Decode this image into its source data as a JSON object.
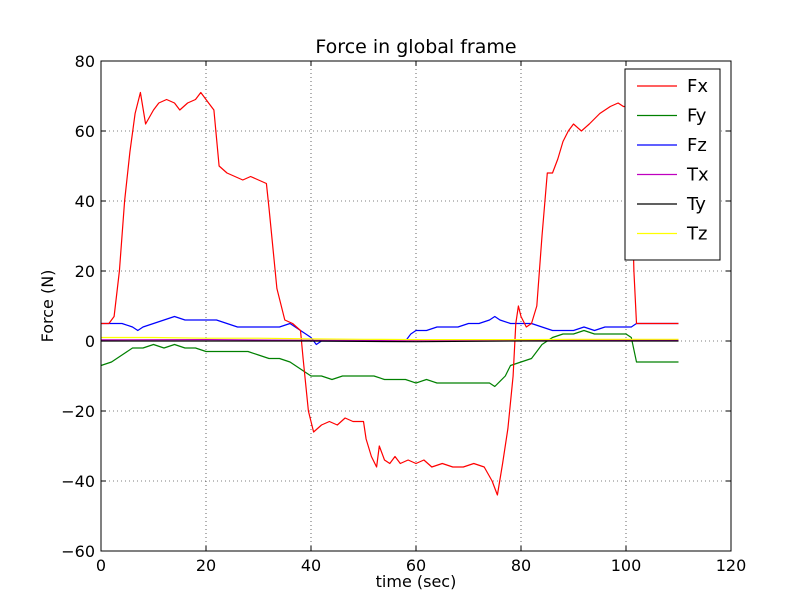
{
  "chart_data": {
    "type": "line",
    "title": "Force in global frame",
    "xlabel": "time (sec)",
    "ylabel": "Force (N)",
    "xlim": [
      0,
      120
    ],
    "ylim": [
      -60,
      80
    ],
    "xticks": [
      0,
      20,
      40,
      60,
      80,
      100,
      120
    ],
    "yticks": [
      -60,
      -40,
      -20,
      0,
      20,
      40,
      60,
      80
    ],
    "xtick_labels": [
      "0",
      "20",
      "40",
      "60",
      "80",
      "100",
      "120"
    ],
    "ytick_labels": [
      "−60",
      "−40",
      "−20",
      "0",
      "20",
      "40",
      "60",
      "80"
    ],
    "grid": true,
    "legend_position": "top-right",
    "series": [
      {
        "name": "Fx",
        "color": "#ff0000",
        "points": [
          [
            0,
            5
          ],
          [
            1.5,
            5
          ],
          [
            2.5,
            7
          ],
          [
            3.5,
            20
          ],
          [
            4.5,
            40
          ],
          [
            5.5,
            54
          ],
          [
            6.5,
            65
          ],
          [
            7.5,
            71
          ],
          [
            8.5,
            62
          ],
          [
            10,
            66
          ],
          [
            11,
            68
          ],
          [
            12.5,
            69
          ],
          [
            14,
            68
          ],
          [
            15,
            66
          ],
          [
            16.5,
            68
          ],
          [
            18,
            69
          ],
          [
            19,
            71
          ],
          [
            20.5,
            68
          ],
          [
            21.5,
            66
          ],
          [
            22.5,
            50
          ],
          [
            24,
            48
          ],
          [
            25.5,
            47
          ],
          [
            27,
            46
          ],
          [
            28.5,
            47
          ],
          [
            30,
            46
          ],
          [
            31.5,
            45
          ],
          [
            32,
            38
          ],
          [
            33.5,
            15
          ],
          [
            35,
            6
          ],
          [
            36.5,
            5
          ],
          [
            38,
            3
          ],
          [
            38.5,
            -5
          ],
          [
            39.5,
            -20
          ],
          [
            40.5,
            -26
          ],
          [
            42,
            -24
          ],
          [
            43.5,
            -23
          ],
          [
            45,
            -24
          ],
          [
            46.5,
            -22
          ],
          [
            48,
            -23
          ],
          [
            50,
            -23
          ],
          [
            50.5,
            -28
          ],
          [
            51.5,
            -33
          ],
          [
            52.5,
            -36
          ],
          [
            53,
            -30
          ],
          [
            54,
            -34
          ],
          [
            55,
            -35
          ],
          [
            56,
            -33
          ],
          [
            57,
            -35
          ],
          [
            58.5,
            -34
          ],
          [
            60,
            -35
          ],
          [
            61.5,
            -34
          ],
          [
            63,
            -36
          ],
          [
            65,
            -35
          ],
          [
            67,
            -36
          ],
          [
            69,
            -36
          ],
          [
            71,
            -35
          ],
          [
            73,
            -36
          ],
          [
            74.5,
            -40
          ],
          [
            75.5,
            -44
          ],
          [
            76.5,
            -35
          ],
          [
            77.5,
            -25
          ],
          [
            78.5,
            -10
          ],
          [
            79,
            5
          ],
          [
            79.5,
            10
          ],
          [
            80,
            7
          ],
          [
            81,
            4
          ],
          [
            82,
            5
          ],
          [
            83,
            10
          ],
          [
            84,
            30
          ],
          [
            85,
            48
          ],
          [
            86,
            48
          ],
          [
            87,
            52
          ],
          [
            88,
            57
          ],
          [
            89,
            60
          ],
          [
            90,
            62
          ],
          [
            91.5,
            60
          ],
          [
            93,
            62
          ],
          [
            95,
            65
          ],
          [
            97,
            67
          ],
          [
            98.5,
            68
          ],
          [
            99.5,
            67
          ],
          [
            100.5,
            67
          ],
          [
            101,
            50
          ],
          [
            101.5,
            20
          ],
          [
            102,
            5
          ],
          [
            103,
            5
          ],
          [
            110,
            5
          ]
        ]
      },
      {
        "name": "Fy",
        "color": "#008000",
        "points": [
          [
            0,
            -7
          ],
          [
            2,
            -6
          ],
          [
            4,
            -4
          ],
          [
            6,
            -2
          ],
          [
            8,
            -2
          ],
          [
            10,
            -1
          ],
          [
            12,
            -2
          ],
          [
            14,
            -1
          ],
          [
            16,
            -2
          ],
          [
            18,
            -2
          ],
          [
            20,
            -3
          ],
          [
            22,
            -3
          ],
          [
            24,
            -3
          ],
          [
            26,
            -3
          ],
          [
            28,
            -3
          ],
          [
            30,
            -4
          ],
          [
            32,
            -5
          ],
          [
            34,
            -5
          ],
          [
            36,
            -6
          ],
          [
            38,
            -8
          ],
          [
            40,
            -10
          ],
          [
            42,
            -10
          ],
          [
            44,
            -11
          ],
          [
            46,
            -10
          ],
          [
            48,
            -10
          ],
          [
            50,
            -10
          ],
          [
            52,
            -10
          ],
          [
            54,
            -11
          ],
          [
            56,
            -11
          ],
          [
            58,
            -11
          ],
          [
            60,
            -12
          ],
          [
            62,
            -11
          ],
          [
            64,
            -12
          ],
          [
            66,
            -12
          ],
          [
            68,
            -12
          ],
          [
            70,
            -12
          ],
          [
            72,
            -12
          ],
          [
            74,
            -12
          ],
          [
            75,
            -13
          ],
          [
            77,
            -10
          ],
          [
            78,
            -7
          ],
          [
            80,
            -6
          ],
          [
            82,
            -5
          ],
          [
            83,
            -3
          ],
          [
            84,
            -1
          ],
          [
            85,
            0
          ],
          [
            86,
            1
          ],
          [
            88,
            2
          ],
          [
            90,
            2
          ],
          [
            92,
            3
          ],
          [
            94,
            2
          ],
          [
            96,
            2
          ],
          [
            98,
            2
          ],
          [
            100,
            2
          ],
          [
            101,
            1
          ],
          [
            102,
            -6
          ],
          [
            104,
            -6
          ],
          [
            110,
            -6
          ]
        ]
      },
      {
        "name": "Fz",
        "color": "#0000ff",
        "points": [
          [
            0,
            5
          ],
          [
            2,
            5
          ],
          [
            4,
            5
          ],
          [
            6,
            4
          ],
          [
            7,
            3
          ],
          [
            8,
            4
          ],
          [
            10,
            5
          ],
          [
            12,
            6
          ],
          [
            14,
            7
          ],
          [
            16,
            6
          ],
          [
            18,
            6
          ],
          [
            20,
            6
          ],
          [
            22,
            6
          ],
          [
            24,
            5
          ],
          [
            26,
            4
          ],
          [
            28,
            4
          ],
          [
            30,
            4
          ],
          [
            32,
            4
          ],
          [
            34,
            4
          ],
          [
            36,
            5
          ],
          [
            38,
            3
          ],
          [
            39,
            2
          ],
          [
            40,
            1
          ],
          [
            41,
            -1
          ],
          [
            42,
            0
          ],
          [
            44,
            0
          ],
          [
            46,
            0
          ],
          [
            48,
            0
          ],
          [
            50,
            0
          ],
          [
            52,
            0
          ],
          [
            54,
            0
          ],
          [
            56,
            0
          ],
          [
            58,
            0
          ],
          [
            59,
            2
          ],
          [
            60,
            3
          ],
          [
            62,
            3
          ],
          [
            64,
            4
          ],
          [
            66,
            4
          ],
          [
            68,
            4
          ],
          [
            70,
            5
          ],
          [
            72,
            5
          ],
          [
            74,
            6
          ],
          [
            75,
            7
          ],
          [
            76,
            6
          ],
          [
            78,
            5
          ],
          [
            80,
            5
          ],
          [
            82,
            5
          ],
          [
            84,
            4
          ],
          [
            86,
            3
          ],
          [
            88,
            3
          ],
          [
            90,
            3
          ],
          [
            92,
            4
          ],
          [
            94,
            3
          ],
          [
            96,
            4
          ],
          [
            98,
            4
          ],
          [
            100,
            4
          ],
          [
            101,
            4
          ],
          [
            102,
            5
          ],
          [
            110,
            5
          ]
        ]
      },
      {
        "name": "Tx",
        "color": "#bf00bf",
        "points": [
          [
            0,
            0.3
          ],
          [
            20,
            0.4
          ],
          [
            40,
            0.2
          ],
          [
            60,
            0.1
          ],
          [
            80,
            0.2
          ],
          [
            100,
            0.3
          ],
          [
            110,
            0.3
          ]
        ]
      },
      {
        "name": "Ty",
        "color": "#000000",
        "points": [
          [
            0,
            0
          ],
          [
            20,
            0
          ],
          [
            40,
            0
          ],
          [
            60,
            -0.2
          ],
          [
            80,
            0
          ],
          [
            100,
            0
          ],
          [
            110,
            0
          ]
        ]
      },
      {
        "name": "Tz",
        "color": "#ffff00",
        "points": [
          [
            0,
            1
          ],
          [
            10,
            1
          ],
          [
            20,
            0.8
          ],
          [
            30,
            0.8
          ],
          [
            40,
            0.6
          ],
          [
            50,
            0.5
          ],
          [
            60,
            0.4
          ],
          [
            70,
            0.4
          ],
          [
            80,
            0.4
          ],
          [
            90,
            0.5
          ],
          [
            100,
            0.5
          ],
          [
            110,
            0.5
          ]
        ]
      }
    ]
  }
}
